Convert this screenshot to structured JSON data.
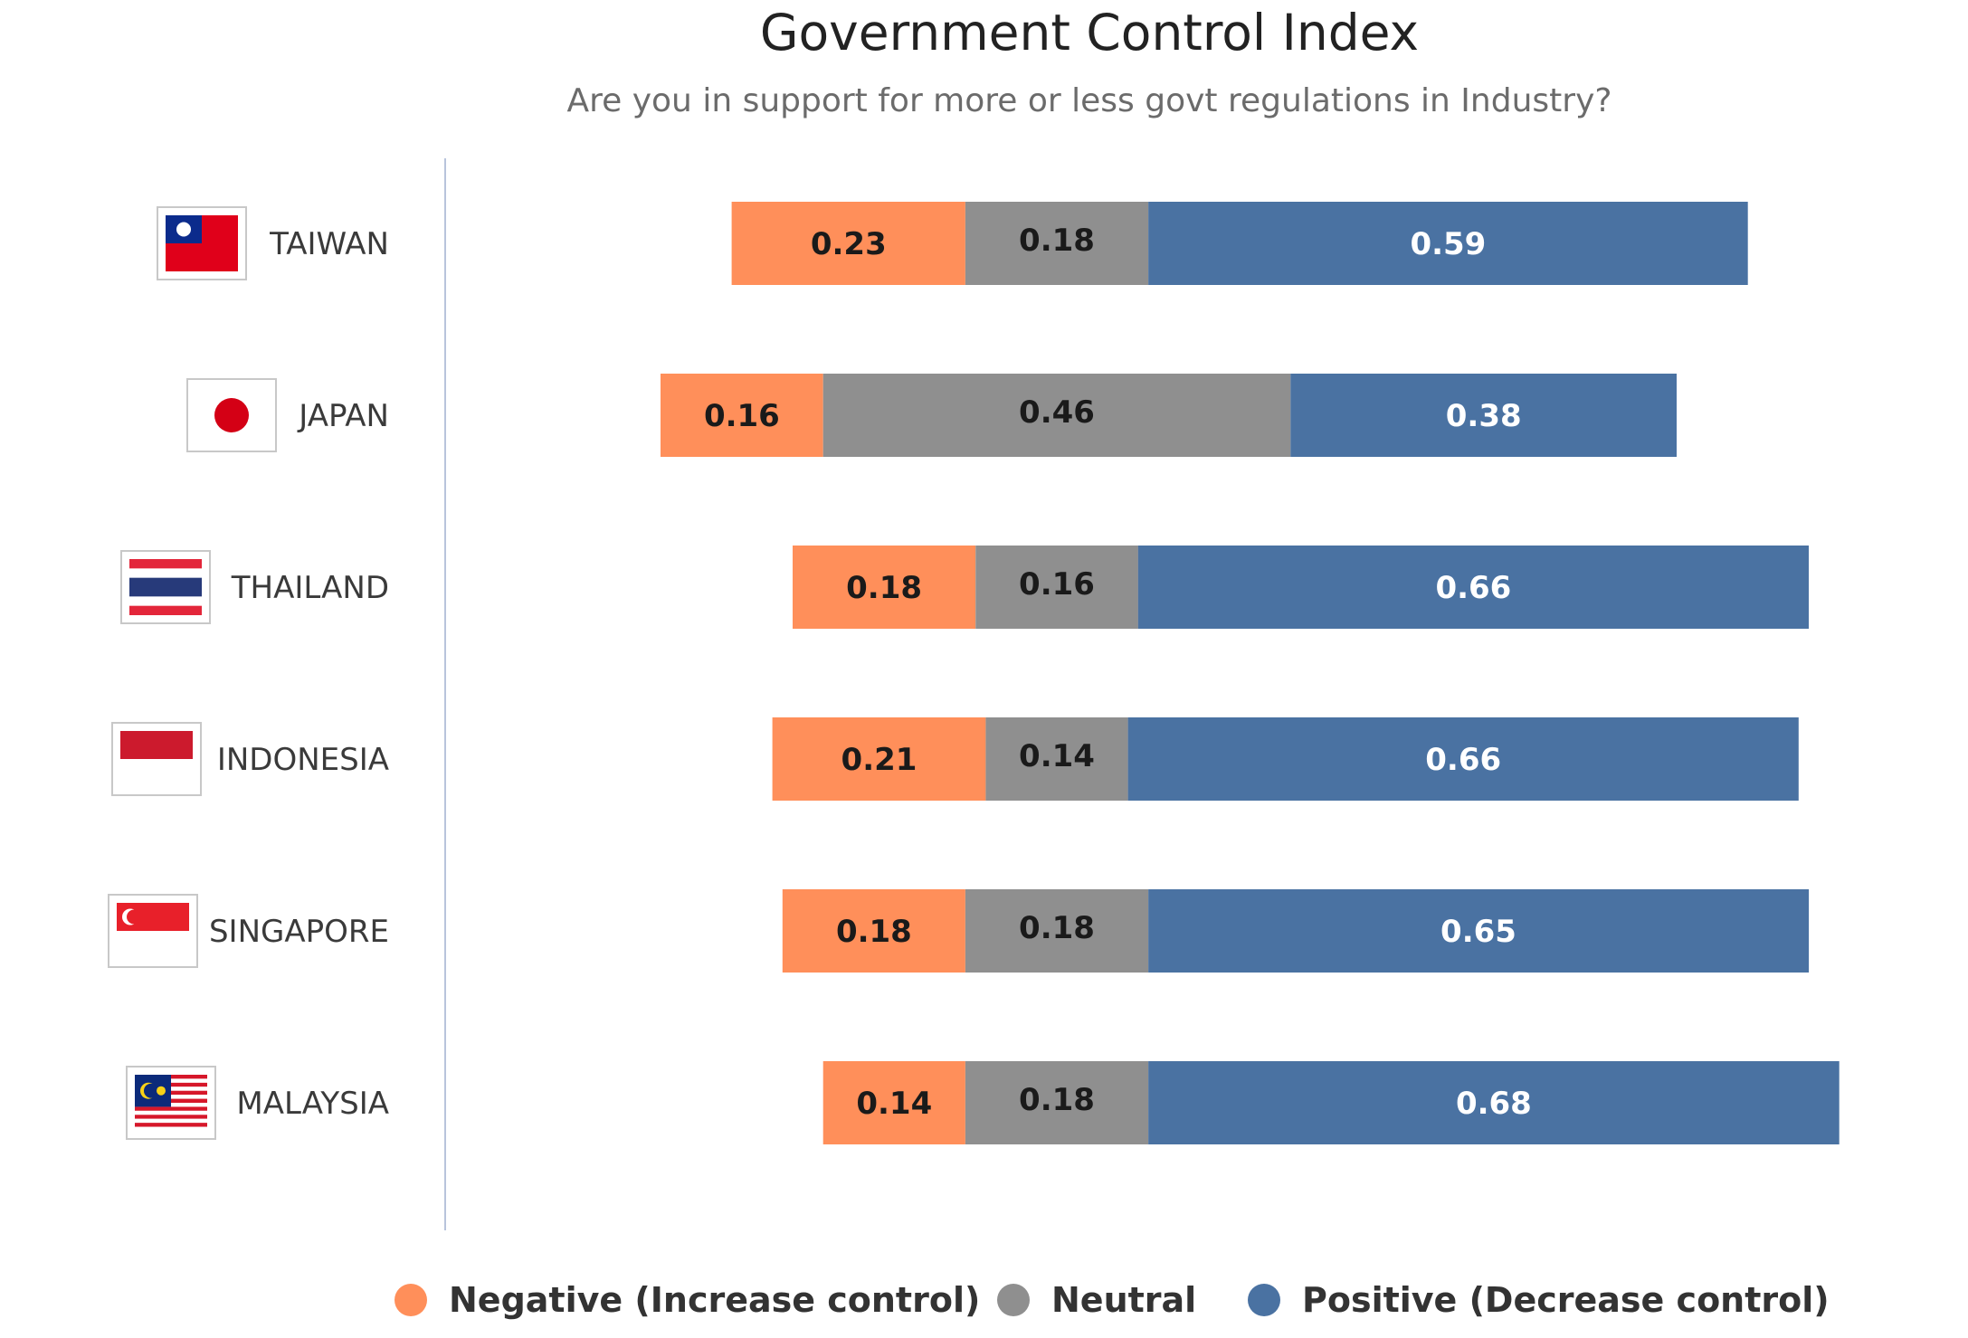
{
  "chart_data": {
    "type": "bar",
    "orientation": "horizontal",
    "stacked": true,
    "diverging": true,
    "title": "Government Control Index",
    "subtitle": "Are you in support for more or less govt regulations in Industry?",
    "categories": [
      "TAIWAN",
      "JAPAN",
      "THAILAND",
      "INDONESIA",
      "SINGAPORE",
      "MALAYSIA"
    ],
    "category_flags": [
      "taiwan-flag-icon",
      "japan-flag-icon",
      "thailand-flag-icon",
      "indonesia-flag-icon",
      "singapore-flag-icon",
      "malaysia-flag-icon"
    ],
    "series": [
      {
        "name": "Negative (Increase control)",
        "values": [
          0.23,
          0.16,
          0.18,
          0.21,
          0.18,
          0.14
        ],
        "color": "#ff8f5a",
        "label_color": "#1a1a1a"
      },
      {
        "name": "Neutral",
        "values": [
          0.18,
          0.46,
          0.16,
          0.14,
          0.18,
          0.18
        ],
        "color": "#8f8f8f",
        "label_color": "#1a1a1a"
      },
      {
        "name": "Positive (Decrease control)",
        "values": [
          0.59,
          0.38,
          0.66,
          0.66,
          0.65,
          0.68
        ],
        "color": "#4a72a2",
        "label_color": "#ffffff"
      }
    ],
    "legend_position": "bottom",
    "grid": false,
    "axis_line_color": "#b8c4dc"
  }
}
